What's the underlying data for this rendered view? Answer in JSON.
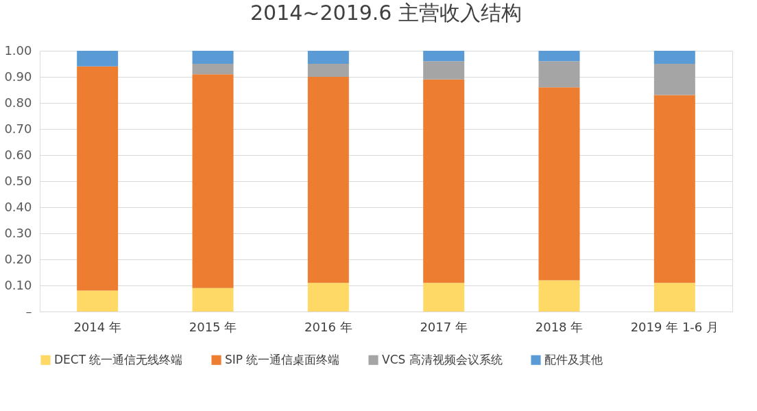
{
  "chart_data": {
    "type": "bar",
    "title": "2014~2019.6 主营收入结构",
    "stacked": true,
    "categories": [
      "2014 年",
      "2015 年",
      "2016 年",
      "2017 年",
      "2018 年",
      "2019 年 1-6 月"
    ],
    "series": [
      {
        "name": "DECT 统一通信无线终端",
        "color": "#ffd966",
        "values": [
          0.08,
          0.09,
          0.11,
          0.11,
          0.12,
          0.11
        ]
      },
      {
        "name": "SIP 统一通信桌面终端",
        "color": "#ed7d31",
        "values": [
          0.86,
          0.82,
          0.79,
          0.78,
          0.74,
          0.72
        ]
      },
      {
        "name": "VCS 高清视频会议系统",
        "color": "#a5a5a5",
        "values": [
          0,
          0.04,
          0.05,
          0.07,
          0.1,
          0.12
        ]
      },
      {
        "name": "配件及其他",
        "color": "#5b9bd5",
        "values": [
          0.06,
          0.05,
          0.05,
          0.04,
          0.04,
          0.05
        ]
      }
    ],
    "ylim": [
      0,
      1
    ],
    "yticks": [
      {
        "value": 0,
        "label": "–"
      },
      {
        "value": 0.1,
        "label": "0.10"
      },
      {
        "value": 0.2,
        "label": "0.20"
      },
      {
        "value": 0.3,
        "label": "0.30"
      },
      {
        "value": 0.4,
        "label": "0.40"
      },
      {
        "value": 0.5,
        "label": "0.50"
      },
      {
        "value": 0.6,
        "label": "0.60"
      },
      {
        "value": 0.7,
        "label": "0.70"
      },
      {
        "value": 0.8,
        "label": "0.80"
      },
      {
        "value": 0.9,
        "label": "0.90"
      },
      {
        "value": 1.0,
        "label": "1.00"
      }
    ],
    "grid": "y",
    "legend": "bottom"
  }
}
